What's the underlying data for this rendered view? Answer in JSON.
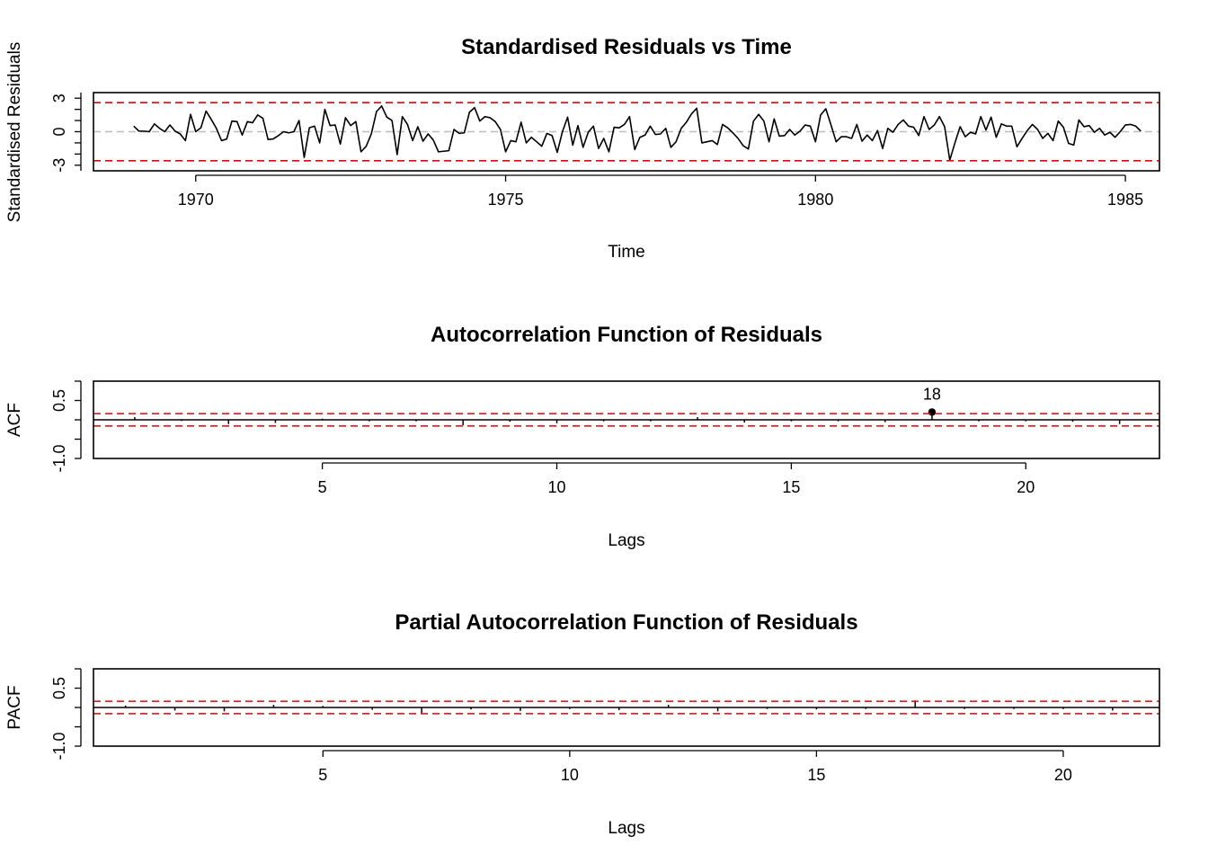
{
  "chart_data": [
    {
      "type": "line",
      "title": "Standardised Residuals vs Time",
      "xlabel": "Time",
      "ylabel": "Standardised Residuals",
      "xlim": [
        1968.35,
        1985.55
      ],
      "ylim": [
        -3.5,
        3.5
      ],
      "x_ticks": [
        1970,
        1975,
        1980,
        1985
      ],
      "y_ticks": [
        -3,
        0,
        3
      ],
      "y_tick_labels": [
        "-3",
        "0",
        "3"
      ],
      "y_minor_ticks": [
        -2,
        -1,
        1,
        2
      ],
      "bands": [
        -2.6,
        2.6
      ],
      "zero_line": 0,
      "grid": false,
      "start": 1969,
      "frequency": 12,
      "values": [
        0.5,
        0.05,
        0.05,
        0.0,
        0.7,
        0.3,
        0.0,
        0.6,
        0.05,
        -0.2,
        -0.8,
        1.55,
        0.0,
        0.35,
        1.85,
        1.1,
        0.3,
        -0.8,
        -0.65,
        0.95,
        0.9,
        -0.3,
        0.9,
        0.8,
        1.5,
        1.2,
        -0.7,
        -0.65,
        -0.35,
        0.0,
        -0.1,
        0.0,
        1.0,
        -2.3,
        0.35,
        0.5,
        -1.0,
        2.0,
        0.55,
        0.6,
        -1.1,
        1.25,
        0.55,
        0.9,
        -1.8,
        -1.3,
        -0.2,
        1.8,
        2.3,
        1.3,
        1.0,
        -2.05,
        1.35,
        0.65,
        -0.8,
        0.45,
        -0.85,
        -0.2,
        -0.75,
        -1.8,
        -1.75,
        -1.7,
        0.2,
        -0.15,
        -0.1,
        1.75,
        2.15,
        0.95,
        1.35,
        1.25,
        0.9,
        0.2,
        -1.8,
        -0.8,
        -0.9,
        0.85,
        -1.0,
        -0.5,
        -0.9,
        -1.3,
        -0.15,
        -0.35,
        -1.85,
        0.0,
        1.3,
        -1.2,
        0.55,
        -1.4,
        -0.05,
        0.5,
        -1.5,
        -0.6,
        -1.8,
        0.4,
        0.35,
        0.65,
        1.35,
        -1.6,
        -0.5,
        -0.3,
        0.5,
        -0.25,
        -0.2,
        0.3,
        -1.4,
        -0.9,
        0.3,
        0.85,
        1.6,
        2.1,
        -1.0,
        -0.9,
        -0.8,
        -1.15,
        0.65,
        0.35,
        -0.1,
        -0.6,
        -1.25,
        -1.55,
        0.95,
        1.55,
        0.95,
        -0.9,
        1.15,
        -0.4,
        -0.35,
        0.2,
        -0.3,
        0.05,
        0.6,
        0.5,
        -0.9,
        1.5,
        2.05,
        0.6,
        -0.9,
        -0.45,
        -0.45,
        -0.6,
        0.65,
        -0.85,
        -0.3,
        -0.8,
        0.1,
        -1.5,
        0.3,
        -0.05,
        0.65,
        1.05,
        0.5,
        0.4,
        -0.35,
        1.35,
        0.2,
        0.6,
        1.35,
        0.45,
        -2.55,
        -1.0,
        0.45,
        -0.45,
        -0.05,
        -0.2,
        1.35,
        0.15,
        1.3,
        -0.5,
        0.7,
        0.5,
        0.5,
        -1.35,
        -0.6,
        0.1,
        0.65,
        0.2,
        -0.6,
        -0.15,
        -0.8,
        0.95,
        0.4,
        -1.05,
        -1.2,
        1.05,
        0.45,
        0.55,
        -0.05,
        0.3,
        -0.3,
        -0.05,
        -0.5,
        0.0,
        0.6,
        0.65,
        0.5,
        0.05
      ]
    },
    {
      "type": "bar",
      "title": "Autocorrelation Function of Residuals",
      "xlabel": "Lags",
      "ylabel": "ACF",
      "xlim": [
        0.12,
        22.85
      ],
      "ylim": [
        -1.0,
        1.0
      ],
      "x_ticks": [
        5,
        10,
        15,
        20
      ],
      "y_ticks": [
        -1.0,
        0.5
      ],
      "y_tick_labels": [
        "-1.0",
        "0.5"
      ],
      "y_minor_ticks": [
        -0.5,
        0,
        1
      ],
      "bands": [
        -0.16,
        0.16
      ],
      "zero_line": 0,
      "lags": [
        1,
        2,
        3,
        4,
        5,
        6,
        7,
        8,
        9,
        10,
        11,
        12,
        13,
        14,
        15,
        16,
        17,
        18,
        19,
        20,
        21,
        22
      ],
      "values": [
        0.07,
        -0.03,
        -0.11,
        -0.08,
        0.03,
        -0.04,
        -0.04,
        -0.14,
        -0.05,
        -0.09,
        -0.04,
        -0.04,
        0.07,
        -0.07,
        -0.04,
        -0.04,
        -0.06,
        0.2,
        -0.04,
        -0.04,
        -0.05,
        -0.11
      ],
      "highlight_points": [
        {
          "lag": 18,
          "value": 0.2,
          "label": "18"
        }
      ]
    },
    {
      "type": "bar",
      "title": "Partial Autocorrelation Function of Residuals",
      "xlabel": "Lags",
      "ylabel": "PACF",
      "xlim": [
        0.35,
        21.95
      ],
      "ylim": [
        -1.0,
        1.0
      ],
      "x_ticks": [
        5,
        10,
        15,
        20
      ],
      "y_ticks": [
        -1.0,
        0.5
      ],
      "y_tick_labels": [
        "-1.0",
        "0.5"
      ],
      "y_minor_ticks": [
        -0.5,
        0,
        1
      ],
      "bands": [
        -0.16,
        0.16
      ],
      "zero_line": 0,
      "lags": [
        1,
        2,
        3,
        4,
        5,
        6,
        7,
        8,
        9,
        10,
        11,
        12,
        13,
        14,
        15,
        16,
        17,
        18,
        19,
        20,
        21
      ],
      "values": [
        0.05,
        -0.08,
        -0.1,
        0.07,
        0.04,
        -0.06,
        -0.14,
        -0.05,
        -0.09,
        -0.04,
        -0.07,
        0.07,
        -0.1,
        -0.04,
        -0.05,
        -0.04,
        0.18,
        -0.04,
        -0.04,
        -0.04,
        -0.08
      ],
      "highlight_points": []
    }
  ]
}
